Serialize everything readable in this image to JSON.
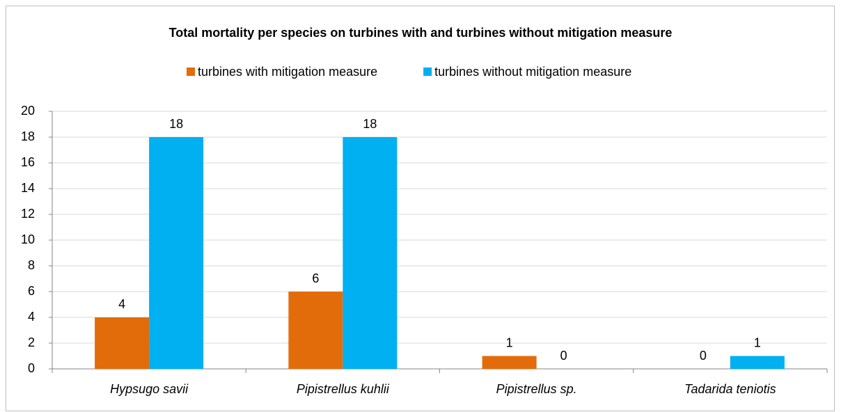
{
  "chart_data": {
    "type": "bar",
    "title": "Total mortality per species on turbines with and turbines without mitigation measure",
    "categories": [
      "Hypsugo savii",
      "Pipistrellus kuhlii",
      "Pipistrellus sp.",
      "Tadarida teniotis"
    ],
    "series": [
      {
        "name": "turbines with mitigation measure",
        "color": "#e36c0a",
        "values": [
          4,
          6,
          1,
          0
        ]
      },
      {
        "name": "turbines without mitigation measure",
        "color": "#00b0f0",
        "values": [
          18,
          18,
          0,
          1
        ]
      }
    ],
    "ylim": [
      0,
      20
    ],
    "yticks": [
      0,
      2,
      4,
      6,
      8,
      10,
      12,
      14,
      16,
      18,
      20
    ],
    "grid": true,
    "legend": "top"
  }
}
